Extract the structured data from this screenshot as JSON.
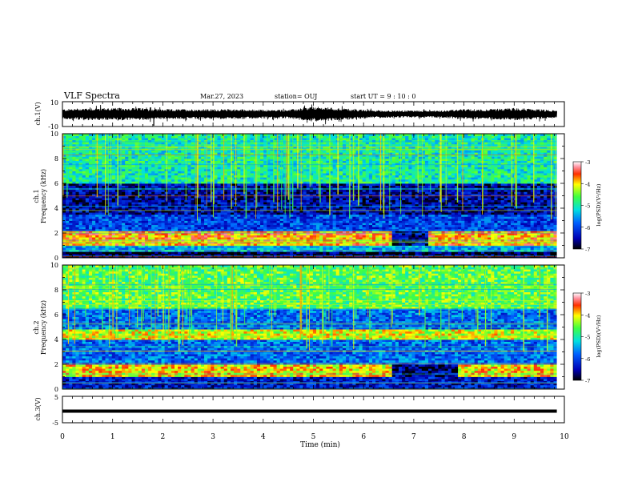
{
  "header": {
    "title": "VLF Spectra",
    "date": "Mar.27, 2023",
    "station": "station= OUJ",
    "start": "start UT =  9 : 10 : 0"
  },
  "colorbars": [
    {
      "label": "log(PSD)(V²/Hz)",
      "ticks": [
        "-3",
        "-4",
        "-5",
        "-6",
        "-7"
      ],
      "range": [
        -7,
        -3
      ]
    },
    {
      "label": "log(PSD)(V²/Hz)",
      "ticks": [
        "-3",
        "-4",
        "-5",
        "-6",
        "-7"
      ],
      "range": [
        -7,
        -3
      ]
    }
  ],
  "chart_data": [
    {
      "type": "line",
      "panel": "ch1-waveform",
      "ylabel": "ch.1(V)",
      "ylim": [
        -10,
        10
      ],
      "ytick_labels": [
        "10",
        "-10"
      ],
      "xlim": [
        0,
        9.85
      ],
      "envelope_min_vs_amplitude_V": [
        [
          0,
          4
        ],
        [
          0.5,
          5
        ],
        [
          1,
          5
        ],
        [
          1.5,
          5
        ],
        [
          2,
          4
        ],
        [
          2.5,
          4
        ],
        [
          3,
          4
        ],
        [
          3.5,
          4
        ],
        [
          4,
          3.5
        ],
        [
          4.5,
          3.5
        ],
        [
          5,
          6
        ],
        [
          5.5,
          5
        ],
        [
          6,
          3.5
        ],
        [
          6.5,
          3
        ],
        [
          7,
          3
        ],
        [
          7.5,
          3
        ],
        [
          8,
          4
        ],
        [
          8.5,
          4
        ],
        [
          9,
          5
        ],
        [
          9.5,
          4
        ],
        [
          9.85,
          3
        ]
      ]
    },
    {
      "type": "heatmap",
      "panel": "ch1-spectrogram",
      "ylabel": "ch.1\nFrequency (kHz)",
      "ylim": [
        0,
        10
      ],
      "ytick_labels": [
        "0",
        "2",
        "4",
        "6",
        "8",
        "10"
      ],
      "xlim": [
        0,
        9.85
      ],
      "zlim": [
        -7,
        -3
      ],
      "colorbar": "log(PSD)(V²/Hz)",
      "bands_kHz_logPSD": [
        {
          "f": [
            0,
            0.5
          ],
          "z": -6.8
        },
        {
          "f": [
            0.5,
            1.0
          ],
          "z": -5.5
        },
        {
          "f": [
            1.0,
            2.2
          ],
          "z": -3.8,
          "note_gap_min": [
            6.55,
            7.3
          ]
        },
        {
          "f": [
            2.2,
            3.5
          ],
          "z": -6.0
        },
        {
          "f": [
            3.5,
            5.0
          ],
          "z": -6.5
        },
        {
          "f": [
            5.0,
            6.0
          ],
          "z": -6.5
        },
        {
          "f": [
            6.0,
            10.0
          ],
          "z": -5.0
        }
      ]
    },
    {
      "type": "heatmap",
      "panel": "ch2-spectrogram",
      "ylabel": "ch.2\nFrequency (kHz)",
      "ylim": [
        0,
        10
      ],
      "ytick_labels": [
        "0",
        "2",
        "4",
        "6",
        "8",
        "10"
      ],
      "xlim": [
        0,
        9.85
      ],
      "zlim": [
        -7,
        -3
      ],
      "colorbar": "log(PSD)(V²/Hz)",
      "bands_kHz_logPSD": [
        {
          "f": [
            0,
            1.0
          ],
          "z": -6.3
        },
        {
          "f": [
            1.0,
            2.0
          ],
          "z": -4.0,
          "note_gap_min": [
            6.55,
            7.9
          ]
        },
        {
          "f": [
            2.0,
            4.0
          ],
          "z": -5.8
        },
        {
          "f": [
            4.0,
            4.8
          ],
          "z": -4.2
        },
        {
          "f": [
            4.8,
            6.5
          ],
          "z": -5.8
        },
        {
          "f": [
            6.5,
            10.0
          ],
          "z": -4.6
        }
      ]
    },
    {
      "type": "line",
      "panel": "ch3-waveform",
      "ylabel": "ch.3(V)",
      "ylim": [
        -5,
        5
      ],
      "ytick_labels": [
        "5",
        "-5"
      ],
      "xlim": [
        0,
        9.85
      ],
      "x": [
        0,
        9.85
      ],
      "y": [
        -0.6,
        -0.6
      ]
    }
  ],
  "xaxis": {
    "label": "Time (min)",
    "ticks": [
      "0",
      "1",
      "2",
      "3",
      "4",
      "5",
      "6",
      "7",
      "8",
      "9",
      "10"
    ],
    "range": [
      0,
      10
    ]
  }
}
